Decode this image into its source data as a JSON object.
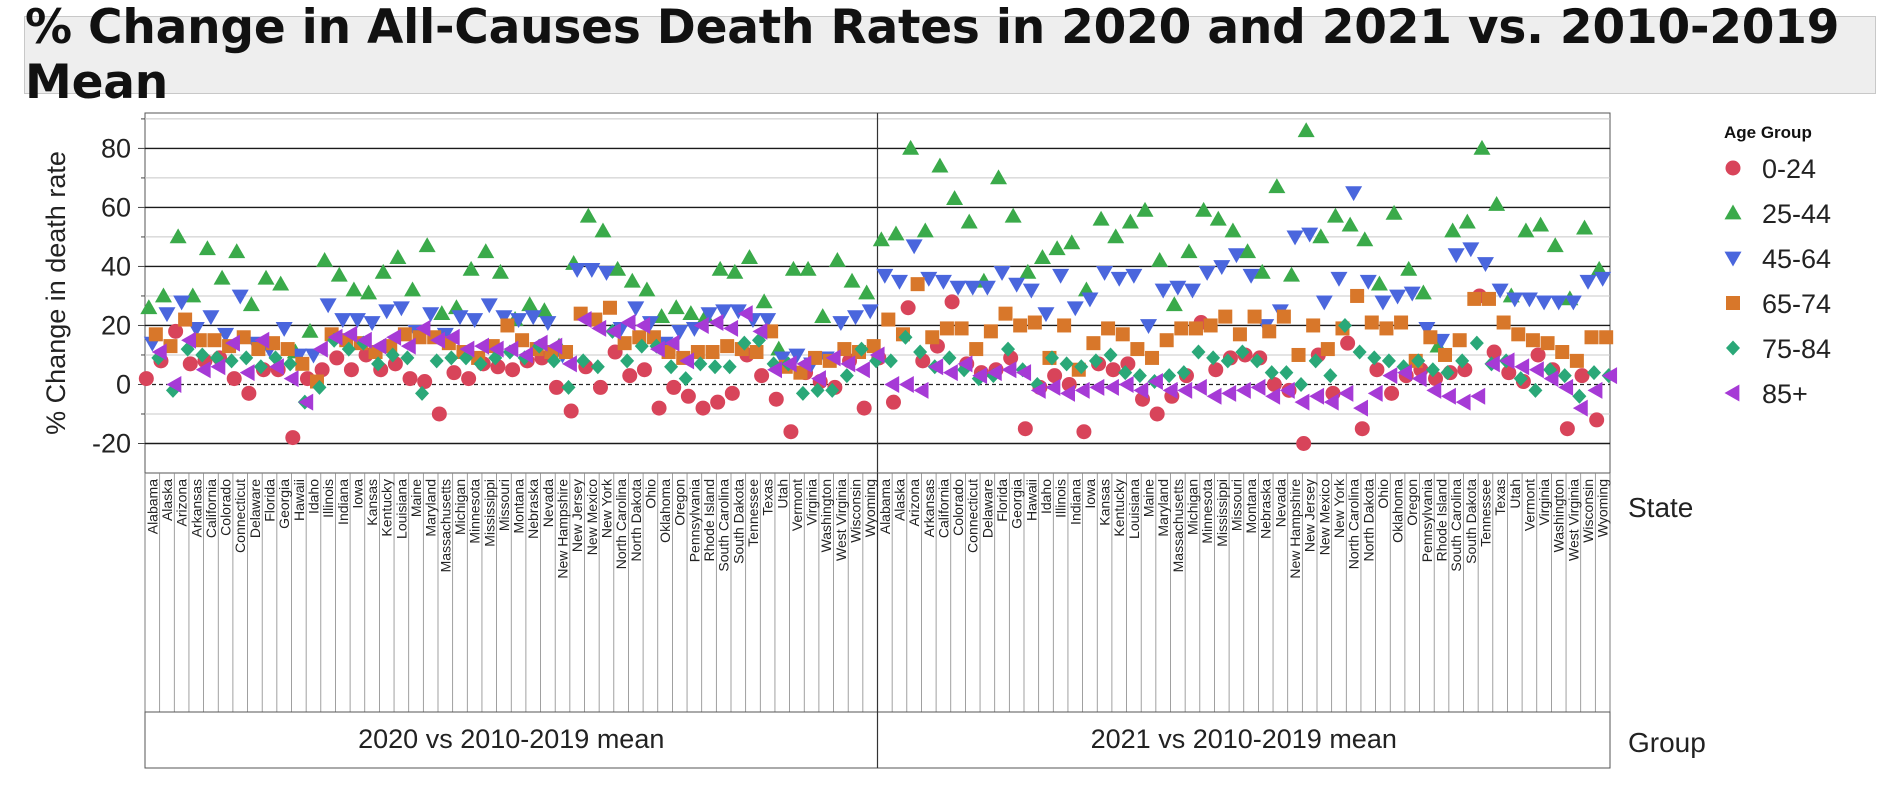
{
  "chart_data": {
    "type": "scatter",
    "title": "% Change in All-Causes Death Rates in 2020 and 2021 vs. 2010-2019 Mean",
    "ylabel": "% Change in death rate",
    "xlabel": "State",
    "group_label": "Group",
    "legend_title": "Age Group",
    "legend_position": "right",
    "ylim": [
      -30,
      92
    ],
    "yticks": [
      -20,
      0,
      20,
      40,
      60,
      80
    ],
    "states": [
      "Alabama",
      "Alaska",
      "Arizona",
      "Arkansas",
      "California",
      "Colorado",
      "Connecticut",
      "Delaware",
      "Florida",
      "Georgia",
      "Hawaii",
      "Idaho",
      "Illinois",
      "Indiana",
      "Iowa",
      "Kansas",
      "Kentucky",
      "Louisiana",
      "Maine",
      "Maryland",
      "Massachusetts",
      "Michigan",
      "Minnesota",
      "Mississippi",
      "Missouri",
      "Montana",
      "Nebraska",
      "Nevada",
      "New Hampshire",
      "New Jersey",
      "New Mexico",
      "New York",
      "North Carolina",
      "North Dakota",
      "Ohio",
      "Oklahoma",
      "Oregon",
      "Pennsylvania",
      "Rhode Island",
      "South Carolina",
      "South Dakota",
      "Tennessee",
      "Texas",
      "Utah",
      "Vermont",
      "Virginia",
      "Washington",
      "West Virginia",
      "Wisconsin",
      "Wyoming"
    ],
    "groups": [
      {
        "label": "2020 vs 2010-2019 mean"
      },
      {
        "label": "2021 vs 2010-2019 mean"
      }
    ],
    "series": [
      {
        "name": "0-24",
        "color": "#d8445a",
        "marker": "circle",
        "values": [
          [
            2,
            8,
            18,
            7,
            8,
            9,
            2,
            -3,
            5,
            5,
            -18,
            2,
            5,
            9,
            5,
            10,
            5,
            7,
            2,
            1,
            -10,
            4,
            2,
            7,
            6,
            5,
            8,
            9,
            -1,
            -9,
            6,
            -1,
            11,
            3,
            5,
            -8,
            -1,
            -4,
            -8,
            -6,
            -3,
            10,
            3,
            -5,
            -16,
            4,
            1,
            -1,
            8,
            -8
          ],
          [
            9,
            -6,
            26,
            8,
            13,
            28,
            7,
            4,
            5,
            9,
            -15,
            -1,
            3,
            0,
            -16,
            7,
            5,
            7,
            -5,
            -10,
            -4,
            3,
            21,
            5,
            9,
            10,
            9,
            0,
            -2,
            -20,
            10,
            -3,
            14,
            -15,
            5,
            -3,
            3,
            5,
            2,
            4,
            5,
            30,
            11,
            4,
            1,
            10,
            5,
            -15,
            3,
            -12
          ]
        ]
      },
      {
        "name": "25-44",
        "color": "#3aaa4a",
        "marker": "triangle-up",
        "values": [
          [
            26,
            30,
            50,
            30,
            46,
            36,
            45,
            27,
            36,
            34,
            11,
            18,
            42,
            37,
            32,
            31,
            38,
            43,
            32,
            47,
            24,
            26,
            39,
            45,
            38,
            22,
            27,
            25,
            13,
            41,
            57,
            52,
            39,
            35,
            32,
            23,
            26,
            24,
            23,
            39,
            38,
            43,
            28,
            12,
            39,
            39,
            23,
            42,
            35,
            31
          ],
          [
            49,
            51,
            80,
            52,
            74,
            63,
            55,
            35,
            70,
            57,
            38,
            43,
            46,
            48,
            32,
            56,
            50,
            55,
            59,
            42,
            27,
            45,
            59,
            56,
            52,
            45,
            38,
            67,
            37,
            86,
            50,
            57,
            54,
            49,
            34,
            58,
            39,
            31,
            13,
            52,
            55,
            80,
            61,
            30,
            52,
            54,
            47,
            29,
            53,
            39
          ]
        ]
      },
      {
        "name": "45-64",
        "color": "#4a66dd",
        "marker": "triangle-down",
        "values": [
          [
            14,
            24,
            28,
            19,
            23,
            17,
            30,
            14,
            12,
            19,
            10,
            10,
            27,
            22,
            22,
            21,
            25,
            26,
            18,
            24,
            17,
            23,
            22,
            27,
            23,
            22,
            23,
            21,
            10,
            39,
            39,
            38,
            19,
            26,
            21,
            14,
            18,
            19,
            24,
            25,
            25,
            22,
            22,
            9,
            10,
            7,
            9,
            21,
            23,
            25
          ],
          [
            37,
            35,
            47,
            36,
            35,
            33,
            33,
            33,
            38,
            34,
            32,
            24,
            37,
            26,
            29,
            38,
            36,
            37,
            20,
            32,
            33,
            32,
            38,
            40,
            44,
            37,
            20,
            25,
            50,
            51,
            28,
            36,
            65,
            35,
            28,
            30,
            31,
            19,
            15,
            44,
            46,
            41,
            32,
            29,
            29,
            28,
            28,
            28,
            35,
            36
          ]
        ]
      },
      {
        "name": "65-74",
        "color": "#d8772a",
        "marker": "square",
        "values": [
          [
            17,
            13,
            22,
            15,
            15,
            13,
            16,
            12,
            14,
            12,
            7,
            1,
            17,
            15,
            14,
            11,
            13,
            17,
            16,
            16,
            14,
            11,
            9,
            13,
            20,
            15,
            12,
            11,
            11,
            24,
            22,
            26,
            14,
            16,
            16,
            11,
            9,
            11,
            11,
            13,
            12,
            11,
            18,
            6,
            4,
            9,
            8,
            12,
            11,
            13
          ],
          [
            22,
            17,
            34,
            16,
            19,
            19,
            12,
            18,
            24,
            20,
            21,
            9,
            20,
            5,
            14,
            19,
            17,
            12,
            9,
            15,
            19,
            19,
            20,
            23,
            17,
            23,
            18,
            23,
            10,
            20,
            12,
            19,
            30,
            21,
            19,
            21,
            8,
            16,
            10,
            15,
            29,
            29,
            21,
            17,
            15,
            14,
            11,
            8,
            16,
            16
          ]
        ]
      },
      {
        "name": "75-84",
        "color": "#2aa878",
        "marker": "diamond",
        "values": [
          [
            9,
            -2,
            12,
            10,
            9,
            8,
            9,
            6,
            9,
            7,
            -6,
            -1,
            15,
            12,
            14,
            7,
            10,
            9,
            -3,
            8,
            9,
            9,
            7,
            9,
            11,
            9,
            13,
            8,
            -1,
            8,
            6,
            18,
            8,
            13,
            13,
            6,
            2,
            7,
            6,
            6,
            14,
            15,
            7,
            7,
            -3,
            -2,
            -2,
            3,
            12,
            8
          ],
          [
            8,
            16,
            11,
            6,
            9,
            5,
            2,
            3,
            12,
            5,
            0,
            9,
            7,
            6,
            8,
            10,
            4,
            3,
            1,
            3,
            4,
            11,
            9,
            8,
            11,
            8,
            4,
            4,
            0,
            8,
            3,
            20,
            11,
            9,
            8,
            6,
            8,
            5,
            4,
            8,
            14,
            7,
            8,
            2,
            -2,
            5,
            3,
            -4,
            4,
            3
          ]
        ]
      },
      {
        "name": "85+",
        "color": "#a63ad6",
        "marker": "triangle-left",
        "values": [
          [
            11,
            0,
            15,
            5,
            6,
            14,
            4,
            15,
            6,
            2,
            -6,
            12,
            16,
            17,
            15,
            13,
            16,
            13,
            19,
            15,
            16,
            12,
            13,
            12,
            12,
            10,
            14,
            13,
            7,
            22,
            19,
            18,
            21,
            20,
            12,
            14,
            8,
            20,
            21,
            19,
            24,
            18,
            5,
            7,
            7,
            2,
            9,
            7,
            5,
            10
          ],
          [
            0,
            0,
            -2,
            6,
            4,
            7,
            3,
            4,
            5,
            4,
            -2,
            -1,
            -3,
            -2,
            -1,
            -1,
            0,
            -2,
            1,
            -2,
            -2,
            -1,
            -4,
            -3,
            -2,
            -1,
            -4,
            -2,
            -6,
            -4,
            -6,
            -3,
            -8,
            -3,
            3,
            4,
            2,
            -2,
            -4,
            -6,
            -4,
            7,
            8,
            6,
            5,
            2,
            -1,
            -8,
            -2,
            3
          ]
        ]
      }
    ]
  }
}
